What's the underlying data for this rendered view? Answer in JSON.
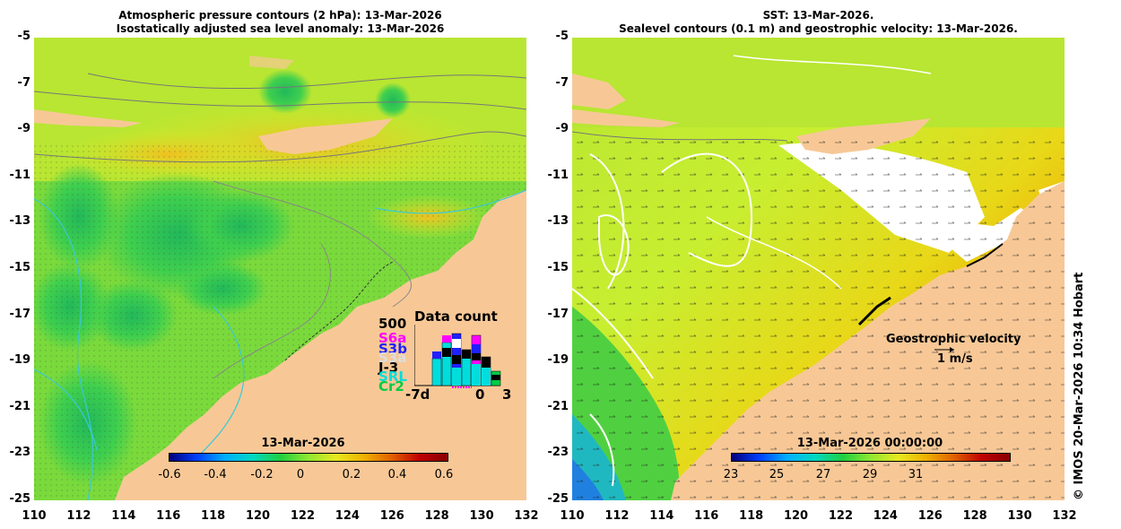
{
  "left_panel": {
    "title_line1": "Atmospheric pressure contours (2 hPa): 13-Mar-2026",
    "title_line2": "Isostatically adjusted sea level anomaly: 13-Mar-2026",
    "colorbar_date": "13-Mar-2026",
    "colorbar_ticks": [
      "-0.6",
      "-0.4",
      "-0.2",
      "0",
      "0.2",
      "0.4",
      "0.6"
    ],
    "data_count": {
      "title": "Data count",
      "max_label": "500",
      "missions": [
        {
          "name": "S6a",
          "color": "#ff00ff"
        },
        {
          "name": "S3b",
          "color": "#2020ff"
        },
        {
          "name": "S3a",
          "color": "#dddddd"
        },
        {
          "name": "J-3",
          "color": "#000000"
        },
        {
          "name": "SRL",
          "color": "#00dddd"
        },
        {
          "name": "Cr2",
          "color": "#00cc44"
        }
      ],
      "x_start": "-7d",
      "x_zero": "0",
      "x_end": "3"
    }
  },
  "right_panel": {
    "title_line1": "SST: 13-Mar-2026.",
    "title_line2": "Sealevel contours (0.1 m) and geostrophic velocity: 13-Mar-2026.",
    "colorbar_date": "13-Mar-2026 00:00:00",
    "colorbar_ticks": [
      "23",
      "25",
      "27",
      "29",
      "31"
    ],
    "velocity_label": "Geostrophic velocity",
    "velocity_scale": "1 m/s"
  },
  "y_ticks": [
    "-5",
    "-7",
    "-9",
    "-11",
    "-13",
    "-15",
    "-17",
    "-19",
    "-21",
    "-23",
    "-25"
  ],
  "x_ticks": [
    "110",
    "112",
    "114",
    "116",
    "118",
    "120",
    "122",
    "124",
    "126",
    "128",
    "130",
    "132"
  ],
  "copyright": "© IMOS 20-Mar-2026 10:34 Hobart",
  "colors": {
    "land": "#f7c896",
    "ocean_green": "#66e040",
    "ocean_yellow": "#c8ee30"
  }
}
